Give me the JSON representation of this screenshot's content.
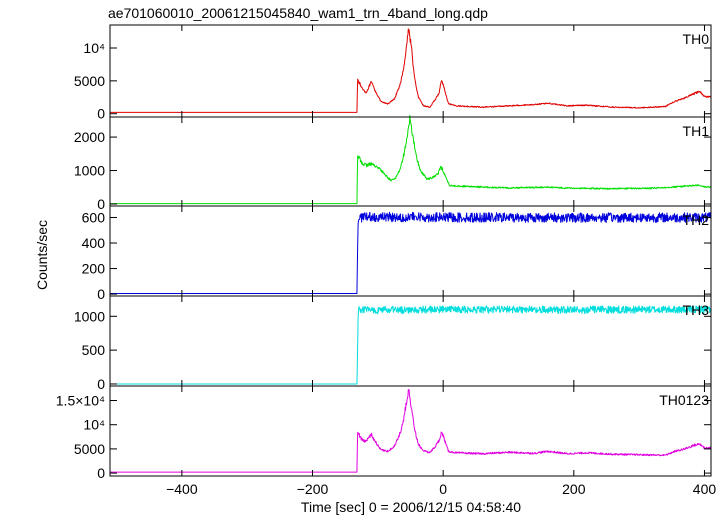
{
  "chart_data": {
    "type": "line",
    "title": "ae701060010_20061215045840_wam1_trn_4band_long.qdp",
    "xlabel": "Time [sec] 0 = 2006/12/15 04:58:40",
    "ylabel": "Counts/sec",
    "xlim": [
      -510,
      410
    ],
    "x_ticks": [
      {
        "value": -400,
        "label": "−400"
      },
      {
        "value": -200,
        "label": "−200"
      },
      {
        "value": 0,
        "label": "0"
      },
      {
        "value": 200,
        "label": "200"
      },
      {
        "value": 400,
        "label": "400"
      }
    ],
    "panels": [
      {
        "name": "TH0",
        "color": "#e00000",
        "ylim": [
          -500,
          13500
        ],
        "y_ticks": [
          {
            "value": 0,
            "label": "0"
          },
          {
            "value": 5000,
            "label": "5000"
          },
          {
            "value": 10000,
            "label": "10⁴"
          }
        ],
        "points": [
          [
            -510,
            200
          ],
          [
            -132,
            200
          ],
          [
            -131,
            5300
          ],
          [
            -125,
            4000
          ],
          [
            -118,
            3200
          ],
          [
            -110,
            4800
          ],
          [
            -104,
            3500
          ],
          [
            -95,
            1800
          ],
          [
            -85,
            1500
          ],
          [
            -75,
            2200
          ],
          [
            -68,
            3800
          ],
          [
            -62,
            6000
          ],
          [
            -57,
            9500
          ],
          [
            -53,
            13000
          ],
          [
            -49,
            10500
          ],
          [
            -44,
            5500
          ],
          [
            -38,
            2500
          ],
          [
            -30,
            1200
          ],
          [
            -20,
            1000
          ],
          [
            -12,
            2200
          ],
          [
            -6,
            3200
          ],
          [
            -3,
            5000
          ],
          [
            0,
            4500
          ],
          [
            3,
            3300
          ],
          [
            8,
            1500
          ],
          [
            20,
            1200
          ],
          [
            60,
            1000
          ],
          [
            100,
            1200
          ],
          [
            140,
            1400
          ],
          [
            160,
            1600
          ],
          [
            190,
            1200
          ],
          [
            220,
            1300
          ],
          [
            260,
            1000
          ],
          [
            300,
            900
          ],
          [
            340,
            1100
          ],
          [
            355,
            1900
          ],
          [
            370,
            2400
          ],
          [
            385,
            3100
          ],
          [
            393,
            3400
          ],
          [
            400,
            2600
          ]
        ]
      },
      {
        "name": "TH1",
        "color": "#00e000",
        "ylim": [
          -60,
          2600
        ],
        "y_ticks": [
          {
            "value": 0,
            "label": "0"
          },
          {
            "value": 1000,
            "label": "1000"
          },
          {
            "value": 2000,
            "label": "2000"
          }
        ],
        "points": [
          [
            -510,
            10
          ],
          [
            -132,
            10
          ],
          [
            -131,
            1450
          ],
          [
            -125,
            1250
          ],
          [
            -118,
            1150
          ],
          [
            -110,
            1200
          ],
          [
            -100,
            1100
          ],
          [
            -90,
            900
          ],
          [
            -80,
            700
          ],
          [
            -72,
            800
          ],
          [
            -65,
            1100
          ],
          [
            -60,
            1500
          ],
          [
            -55,
            2000
          ],
          [
            -51,
            2550
          ],
          [
            -47,
            2100
          ],
          [
            -42,
            1500
          ],
          [
            -35,
            1000
          ],
          [
            -25,
            750
          ],
          [
            -15,
            800
          ],
          [
            -8,
            900
          ],
          [
            -4,
            1100
          ],
          [
            0,
            1000
          ],
          [
            4,
            800
          ],
          [
            10,
            550
          ],
          [
            40,
            520
          ],
          [
            100,
            480
          ],
          [
            160,
            500
          ],
          [
            200,
            470
          ],
          [
            260,
            460
          ],
          [
            320,
            470
          ],
          [
            360,
            520
          ],
          [
            390,
            560
          ],
          [
            400,
            510
          ]
        ]
      },
      {
        "name": "TH2",
        "color": "#0000dd",
        "ylim": [
          -15,
          690
        ],
        "y_ticks": [
          {
            "value": 0,
            "label": "0"
          },
          {
            "value": 200,
            "label": "200"
          },
          {
            "value": 400,
            "label": "400"
          },
          {
            "value": 600,
            "label": "600"
          }
        ],
        "noise": 38,
        "points": [
          [
            -510,
            5
          ],
          [
            -132,
            5
          ],
          [
            -131,
            350
          ],
          [
            -130,
            600
          ],
          [
            -100,
            605
          ],
          [
            0,
            600
          ],
          [
            100,
            600
          ],
          [
            200,
            598
          ],
          [
            300,
            600
          ],
          [
            400,
            600
          ]
        ]
      },
      {
        "name": "TH3",
        "color": "#00dddd",
        "ylim": [
          -30,
          1300
        ],
        "y_ticks": [
          {
            "value": 0,
            "label": "0"
          },
          {
            "value": 500,
            "label": "500"
          },
          {
            "value": 1000,
            "label": "1000"
          }
        ],
        "noise": 55,
        "points": [
          [
            -510,
            0
          ],
          [
            -132,
            0
          ],
          [
            -131,
            500
          ],
          [
            -130,
            1100
          ],
          [
            -100,
            1090
          ],
          [
            0,
            1100
          ],
          [
            100,
            1100
          ],
          [
            200,
            1095
          ],
          [
            300,
            1100
          ],
          [
            400,
            1100
          ]
        ]
      },
      {
        "name": "TH0123",
        "color": "#e000e0",
        "ylim": [
          -600,
          18000
        ],
        "y_ticks": [
          {
            "value": 0,
            "label": "0"
          },
          {
            "value": 5000,
            "label": "5000"
          },
          {
            "value": 10000,
            "label": "10⁴"
          },
          {
            "value": 15000,
            "label": "1.5×10⁴"
          }
        ],
        "points": [
          [
            -510,
            200
          ],
          [
            -132,
            200
          ],
          [
            -131,
            8500
          ],
          [
            -125,
            7000
          ],
          [
            -118,
            6500
          ],
          [
            -110,
            8000
          ],
          [
            -104,
            6500
          ],
          [
            -95,
            4800
          ],
          [
            -85,
            4500
          ],
          [
            -75,
            5500
          ],
          [
            -68,
            7500
          ],
          [
            -62,
            10000
          ],
          [
            -57,
            14000
          ],
          [
            -53,
            17200
          ],
          [
            -49,
            14000
          ],
          [
            -44,
            9000
          ],
          [
            -38,
            6000
          ],
          [
            -30,
            4500
          ],
          [
            -20,
            4300
          ],
          [
            -12,
            5500
          ],
          [
            -6,
            6800
          ],
          [
            -3,
            8300
          ],
          [
            0,
            7800
          ],
          [
            3,
            6500
          ],
          [
            8,
            4500
          ],
          [
            20,
            4200
          ],
          [
            60,
            4000
          ],
          [
            100,
            4300
          ],
          [
            140,
            4100
          ],
          [
            160,
            4500
          ],
          [
            190,
            4000
          ],
          [
            220,
            4200
          ],
          [
            260,
            3900
          ],
          [
            300,
            3800
          ],
          [
            340,
            3700
          ],
          [
            355,
            4500
          ],
          [
            370,
            5000
          ],
          [
            385,
            5800
          ],
          [
            393,
            6000
          ],
          [
            400,
            5200
          ]
        ]
      }
    ]
  }
}
